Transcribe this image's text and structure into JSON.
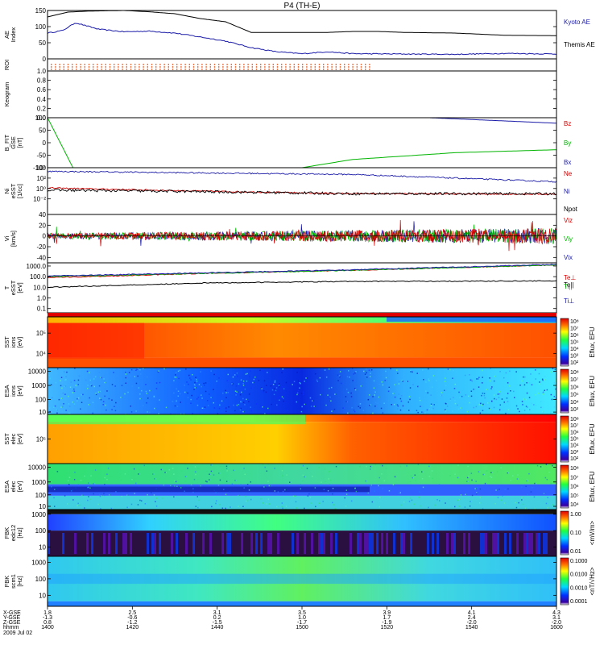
{
  "title": "P4 (TH-E)",
  "chart_data": [
    {
      "type": "line",
      "ylabel": "AE Index",
      "ylim": [
        0,
        150
      ],
      "yticks": [
        0,
        50,
        100,
        150
      ],
      "series": [
        {
          "name": "Kyoto AE",
          "color": "#1a1aa8",
          "x": [
            0,
            0.03,
            0.055,
            0.1,
            0.15,
            0.2,
            0.25,
            0.3,
            0.35,
            0.4,
            0.45,
            0.5,
            0.55,
            0.6,
            0.7,
            0.8,
            0.9,
            1.0
          ],
          "values": [
            80,
            88,
            112,
            92,
            84,
            86,
            80,
            68,
            55,
            35,
            22,
            16,
            22,
            16,
            15,
            14,
            17,
            15
          ]
        },
        {
          "name": "Themis AE",
          "color": "#000000",
          "x": [
            0,
            0.04,
            0.08,
            0.15,
            0.2,
            0.25,
            0.3,
            0.35,
            0.4,
            0.45,
            0.5,
            0.55,
            0.6,
            0.65,
            0.7,
            0.8,
            0.9,
            1.0
          ],
          "values": [
            130,
            145,
            148,
            150,
            146,
            140,
            125,
            115,
            82,
            82,
            82,
            82,
            85,
            85,
            82,
            80,
            73,
            72
          ]
        }
      ]
    },
    {
      "type": "heatmap",
      "ylabel": "ROI"
    },
    {
      "type": "heatmap",
      "ylabel": "Keogram",
      "yticks": [
        0.0,
        0.2,
        0.4,
        0.6,
        0.8,
        1.0
      ],
      "ylim": [
        0,
        1
      ]
    },
    {
      "type": "line",
      "ylabel": "B_FIT GSE [nT]",
      "ylim": [
        -100,
        100
      ],
      "yticks": [
        -100,
        -50,
        0,
        50,
        100
      ],
      "series": [
        {
          "name": "Bz",
          "color": "#d40000",
          "x": [],
          "values": []
        },
        {
          "name": "By",
          "color": "#00b400",
          "x": [
            0,
            0.05,
            0.5,
            0.6,
            0.8,
            1.0
          ],
          "values": [
            100,
            -100,
            -100,
            -67,
            -40,
            -28
          ]
        },
        {
          "name": "Bx",
          "color": "#1a1aa8",
          "x": [
            0.75,
            0.9,
            1.0
          ],
          "values": [
            100,
            87,
            78
          ]
        }
      ]
    },
    {
      "type": "line",
      "ylabel": "Ni eSST [1/cc]",
      "yscale": "log",
      "ylim_exp": [
        -5,
        4
      ],
      "ytick_labels": [
        "10⁴",
        "10²",
        "10⁰",
        "10⁻²"
      ],
      "series": [
        {
          "name": "Ne",
          "color": "#d40000",
          "x": [
            0,
            0.3,
            0.6,
            1.0
          ],
          "values_exp": [
            0.1,
            -0.5,
            -1.0,
            -1.1
          ]
        },
        {
          "name": "Ni",
          "color": "#1a1aa8",
          "x": [
            0,
            0.3,
            0.6,
            0.8,
            1.0
          ],
          "values_exp": [
            3.3,
            3.0,
            2.7,
            2.0,
            1.3
          ]
        },
        {
          "name": "Npot",
          "color": "#000000",
          "x": [
            0,
            0.3,
            0.6,
            1.0
          ],
          "values_exp": [
            -0.3,
            -0.6,
            -1.0,
            -1.0
          ]
        }
      ]
    },
    {
      "type": "line",
      "ylabel": "Vi [km/s]",
      "ylim": [
        -50,
        40
      ],
      "yticks": [
        -40,
        -20,
        0,
        20,
        40
      ],
      "series": [
        {
          "name": "Viz",
          "color": "#d40000"
        },
        {
          "name": "Viy",
          "color": "#00b400"
        },
        {
          "name": "Vix",
          "color": "#1a1aa8"
        }
      ]
    },
    {
      "type": "line",
      "ylabel": "T eSST [eV]",
      "yscale": "log",
      "ylim_exp": [
        -1.4,
        3.3
      ],
      "ytick_labels": [
        "1000.0",
        "100.0",
        "10.0",
        "1.0",
        "0.1"
      ],
      "series": [
        {
          "name": "Te||",
          "color": "#000000",
          "x": [
            0,
            0.3,
            0.6,
            1.0
          ],
          "values_exp": [
            1.0,
            1.4,
            1.55,
            1.6
          ]
        },
        {
          "name": "Te⊥",
          "color": "#d40000",
          "x": [
            0,
            0.3,
            0.6,
            1.0
          ],
          "values_exp": [
            1.9,
            2.3,
            2.6,
            3.1
          ]
        },
        {
          "name": "Ti||",
          "color": "#00b400",
          "x": [
            0,
            0.3,
            0.6,
            1.0
          ],
          "values_exp": [
            2.0,
            2.3,
            2.6,
            3.1
          ]
        },
        {
          "name": "Ti⊥",
          "color": "#1a1aa8",
          "x": [
            0,
            0.3,
            0.6,
            1.0
          ],
          "values_exp": [
            2.05,
            2.35,
            2.65,
            3.15
          ]
        }
      ]
    },
    {
      "type": "heatmap",
      "ylabel": "SST ions [eV]",
      "ytick_labels": [
        "10⁵",
        "10⁴"
      ],
      "colorbar_label": "Eflux, EFU",
      "colorbar_ticks": [
        "10⁸",
        "10⁷",
        "10⁶",
        "10⁵",
        "10⁴",
        "10³",
        "10²"
      ]
    },
    {
      "type": "heatmap",
      "ylabel": "ESA ions [eV]",
      "ytick_labels": [
        "10000",
        "1000",
        "100",
        "10"
      ],
      "colorbar_label": "Eflux, EFU",
      "colorbar_ticks": [
        "10⁸",
        "10⁷",
        "10⁶",
        "10⁵",
        "10⁴",
        "10³"
      ]
    },
    {
      "type": "heatmap",
      "ylabel": "SST elec [eV]",
      "ytick_labels": [
        "10⁵"
      ],
      "colorbar_label": "Eflux, EFU",
      "colorbar_ticks": [
        "10⁸",
        "10⁷",
        "10⁶",
        "10⁵",
        "10⁴",
        "10³",
        "10²"
      ]
    },
    {
      "type": "heatmap",
      "ylabel": "ESA elec [eV]",
      "ytick_labels": [
        "10000",
        "1000",
        "100",
        "10"
      ],
      "colorbar_label": "Eflux, EFU",
      "colorbar_ticks": [
        "10⁸",
        "10⁷",
        "10⁶",
        "10⁵",
        "10⁴"
      ]
    },
    {
      "type": "heatmap",
      "ylabel": "FBK edc12 [Hz]",
      "ytick_labels": [
        "1000",
        "100",
        "10"
      ],
      "colorbar_label": "<mV/m>",
      "colorbar_ticks": [
        "1.00",
        "0.10",
        "0.01"
      ]
    },
    {
      "type": "heatmap",
      "ylabel": "FBK scm1 [Hz]",
      "ytick_labels": [
        "1000",
        "100",
        "10"
      ],
      "colorbar_label": "<nT/√Hz>",
      "colorbar_ticks": [
        "0.1000",
        "0.0100",
        "0.0010",
        "0.0001"
      ]
    }
  ],
  "x_axis": {
    "row_labels": [
      "X-GSE",
      "Y-GSE",
      "Z-GSE",
      "hhmm",
      "2009 Jul 02"
    ],
    "ticks": [
      {
        "x": "1.8",
        "y": "-1.3",
        "z": "0.8",
        "t": "1400"
      },
      {
        "x": "2.5",
        "y": "-0.6",
        "z": "-1.2",
        "t": "1420"
      },
      {
        "x": "3.1",
        "y": "0.2",
        "z": "-1.5",
        "t": "1440"
      },
      {
        "x": "3.5",
        "y": "1.0",
        "z": "-1.7",
        "t": "1500"
      },
      {
        "x": "3.9",
        "y": "1.7",
        "z": "-1.9",
        "t": "1520"
      },
      {
        "x": "4.1",
        "y": "2.4",
        "z": "-2.0",
        "t": "1540"
      },
      {
        "x": "4.3",
        "y": "3.1",
        "z": "-2.0",
        "t": "1600"
      }
    ]
  },
  "colors": {
    "red": "#d40000",
    "green": "#00b400",
    "blue": "#1a1aa8",
    "black": "#000000"
  }
}
